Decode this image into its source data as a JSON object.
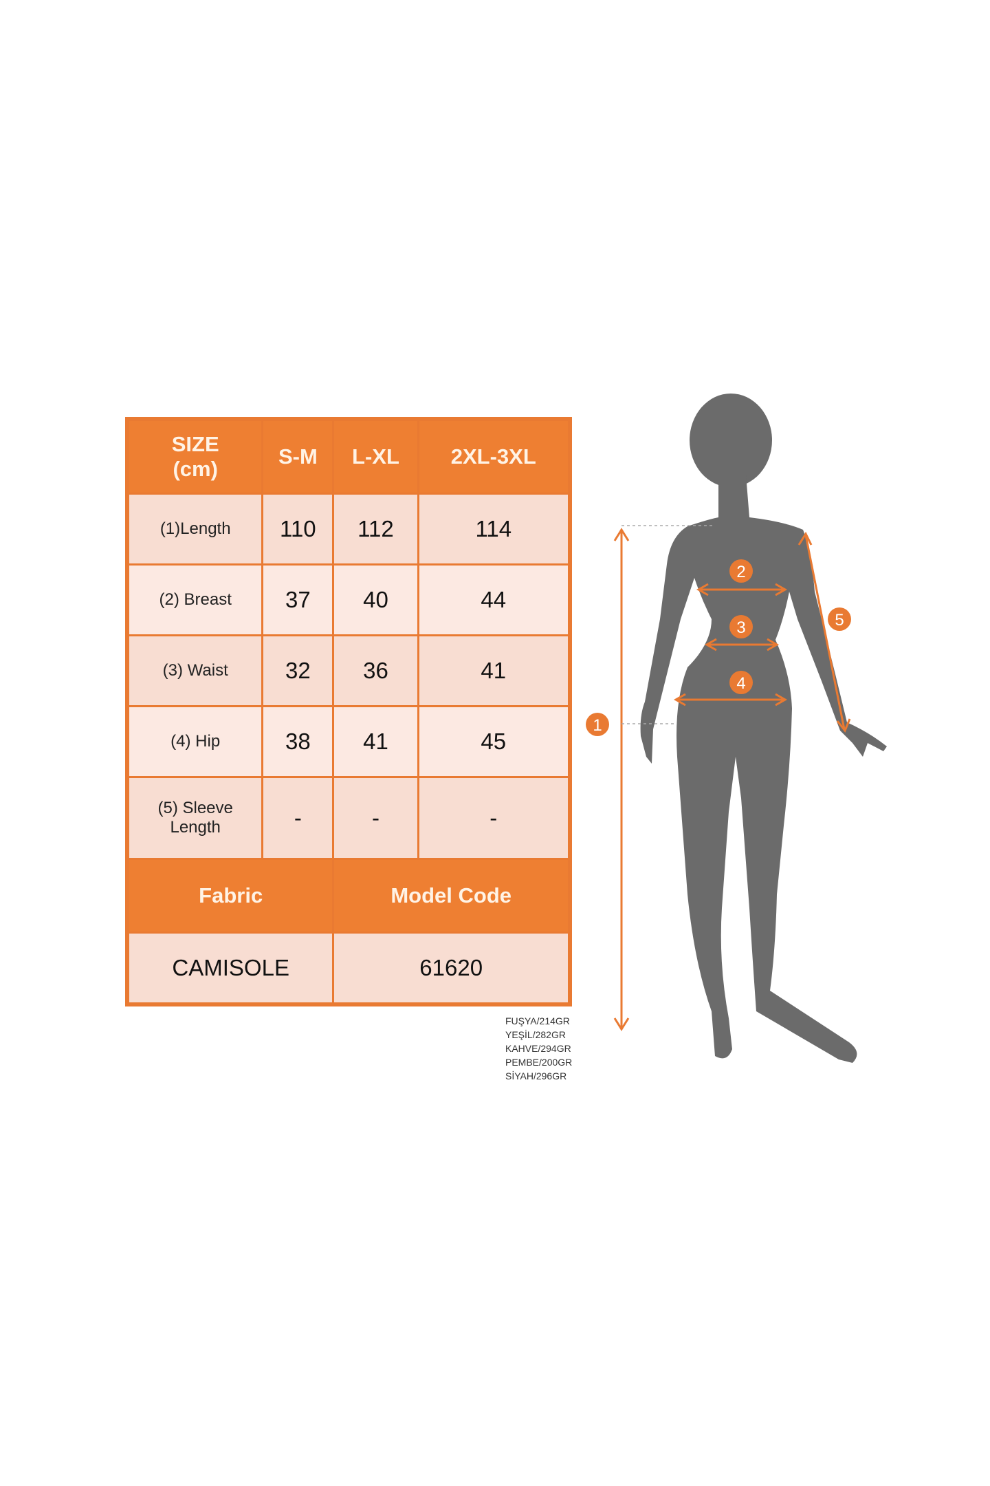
{
  "table": {
    "header": [
      "SIZE\n(cm)",
      "S-M",
      "L-XL",
      "2XL-3XL"
    ],
    "header_size": "SIZE",
    "header_unit": "(cm)",
    "sizes": [
      "S-M",
      "L-XL",
      "2XL-3XL"
    ],
    "rows": [
      {
        "label": "(1)Length",
        "values": [
          "110",
          "112",
          "114"
        ]
      },
      {
        "label": "(2) Breast",
        "values": [
          "37",
          "40",
          "44"
        ]
      },
      {
        "label": "(3) Waist",
        "values": [
          "32",
          "36",
          "41"
        ]
      },
      {
        "label": "(4) Hip",
        "values": [
          "38",
          "41",
          "45"
        ]
      },
      {
        "label_line1": "(5) Sleeve",
        "label_line2": "Length",
        "values": [
          "-",
          "-",
          "-"
        ]
      }
    ],
    "footer_headers": [
      "Fabric",
      "Model Code"
    ],
    "footer_values": [
      "CAMISOLE",
      "61620"
    ]
  },
  "weights": [
    "FUŞYA/214GR",
    "YEŞİL/282GR",
    "KAHVE/294GR",
    "PEMBE/200GR",
    "SİYAH/296GR"
  ],
  "markers": [
    "1",
    "2",
    "3",
    "4",
    "5"
  ],
  "colors": {
    "accent": "#e97a32",
    "cell_dark": "#f8ddd2",
    "cell_light": "#fce9e2",
    "silhouette": "#6b6b6b"
  }
}
